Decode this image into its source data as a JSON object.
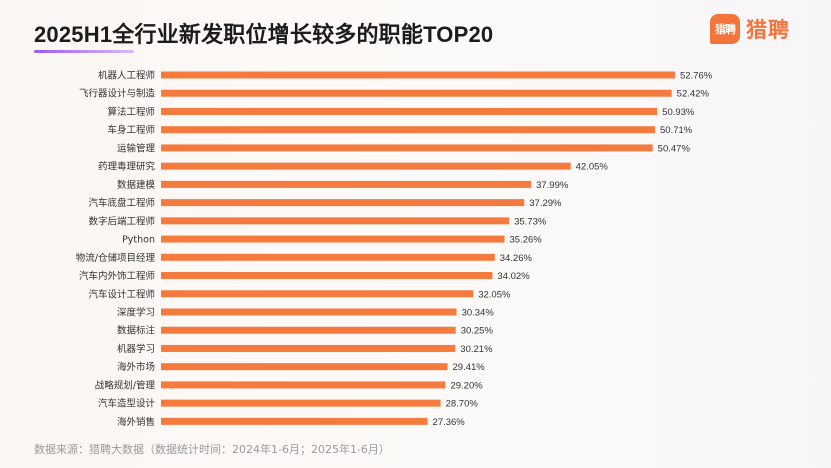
{
  "title": "2025H1全行业新发职位增长较多的职能TOP20",
  "logo": {
    "mark": "猎聘",
    "text": "猎聘",
    "color": "#f4743b"
  },
  "source": "数据来源：猎聘大数据（数据统计时间：2024年1-6月；2025年1-6月）",
  "chart_data": {
    "type": "bar",
    "orientation": "horizontal",
    "title": "2025H1全行业新发职位增长较多的职能TOP20",
    "xlabel": "",
    "ylabel": "",
    "value_suffix": "%",
    "bar_color": "#f47a3d",
    "categories": [
      "机器人工程师",
      "飞行器设计与制造",
      "算法工程师",
      "车身工程师",
      "运输管理",
      "药理毒理研究",
      "数据建模",
      "汽车底盘工程师",
      "数字后端工程师",
      "Python",
      "物流/仓储项目经理",
      "汽车内外饰工程师",
      "汽车设计工程师",
      "深度学习",
      "数据标注",
      "机器学习",
      "海外市场",
      "战略规划/管理",
      "汽车造型设计",
      "海外销售"
    ],
    "values": [
      52.76,
      52.42,
      50.93,
      50.71,
      50.47,
      42.05,
      37.99,
      37.29,
      35.73,
      35.26,
      34.26,
      34.02,
      32.05,
      30.34,
      30.25,
      30.21,
      29.41,
      29.2,
      28.7,
      27.36
    ],
    "data_labels": [
      "52.76%",
      "52.42%",
      "50.93%",
      "50.71%",
      "50.47%",
      "42.05%",
      "37.99%",
      "37.29%",
      "35.73%",
      "35.26%",
      "34.26%",
      "34.02%",
      "32.05%",
      "30.34%",
      "30.25%",
      "30.21%",
      "29.41%",
      "29.20%",
      "28.70%",
      "27.36%"
    ],
    "grid": false,
    "legend": "none"
  }
}
